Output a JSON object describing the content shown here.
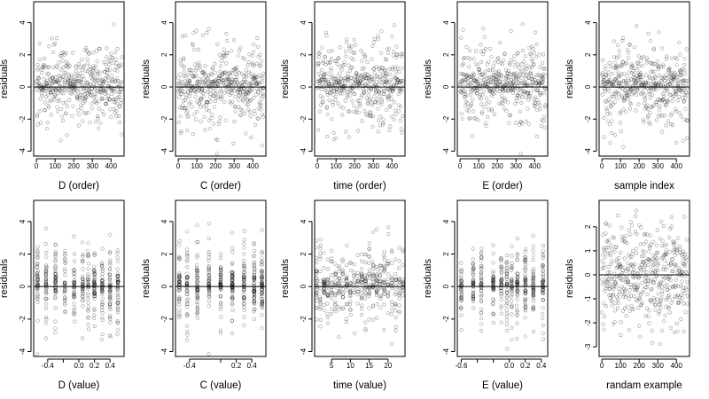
{
  "chart_data": [
    {
      "id": "p1",
      "type": "scatter",
      "xlabel": "D (order)",
      "ylabel": "residuals",
      "xlim": [
        -15,
        470
      ],
      "ylim": [
        -4.3,
        5.3
      ],
      "xticks": [
        0,
        100,
        200,
        300,
        400
      ],
      "yticks": [
        -4,
        -2,
        0,
        2,
        4
      ],
      "ref_y": 0,
      "pattern": "order",
      "seed": 11,
      "x": [],
      "y": []
    },
    {
      "id": "p2",
      "type": "scatter",
      "xlabel": "C (order)",
      "ylabel": "residuals",
      "xlim": [
        -15,
        470
      ],
      "ylim": [
        -4.3,
        5.3
      ],
      "xticks": [
        0,
        100,
        200,
        300,
        400
      ],
      "yticks": [
        -4,
        -2,
        0,
        2,
        4
      ],
      "ref_y": 0,
      "pattern": "order",
      "seed": 23,
      "x": [],
      "y": []
    },
    {
      "id": "p3",
      "type": "scatter",
      "xlabel": "time (order)",
      "ylabel": "residuals",
      "xlim": [
        -15,
        470
      ],
      "ylim": [
        -4.3,
        5.3
      ],
      "xticks": [
        0,
        100,
        200,
        300,
        400
      ],
      "yticks": [
        -4,
        -2,
        0,
        2,
        4
      ],
      "ref_y": 0,
      "pattern": "order",
      "seed": 37,
      "x": [],
      "y": []
    },
    {
      "id": "p4",
      "type": "scatter",
      "xlabel": "E (order)",
      "ylabel": "residuals",
      "xlim": [
        -15,
        470
      ],
      "ylim": [
        -4.3,
        5.3
      ],
      "xticks": [
        0,
        100,
        200,
        300,
        400
      ],
      "yticks": [
        -4,
        -2,
        0,
        2,
        4
      ],
      "ref_y": 0,
      "pattern": "order",
      "seed": 41,
      "x": [],
      "y": []
    },
    {
      "id": "p5",
      "type": "scatter",
      "xlabel": "sample index",
      "ylabel": "residuals",
      "xlim": [
        -15,
        470
      ],
      "ylim": [
        -4.3,
        5.3
      ],
      "xticks": [
        0,
        100,
        200,
        300,
        400
      ],
      "yticks": [
        -4,
        -2,
        0,
        2,
        4
      ],
      "ref_y": 0,
      "pattern": "order",
      "seed": 53,
      "x": [],
      "y": []
    },
    {
      "id": "p6",
      "type": "scatter",
      "xlabel": "D (value)",
      "ylabel": "residuals",
      "xlim": [
        -0.58,
        0.58
      ],
      "ylim": [
        -4.3,
        5.3
      ],
      "xticks": [
        -0.4,
        -0.2,
        0.0,
        0.2,
        0.4
      ],
      "xtick_labels": [
        "-0.4",
        "",
        "0.0",
        "0.2",
        "0.4"
      ],
      "yticks": [
        -4,
        -2,
        0,
        2,
        4
      ],
      "ref_y": 0,
      "pattern": "clusters",
      "levels": [
        -0.53,
        -0.42,
        -0.3,
        -0.18,
        -0.06,
        0.05,
        0.12,
        0.2,
        0.3,
        0.4,
        0.5
      ],
      "seed": 61,
      "x": [],
      "y": []
    },
    {
      "id": "p7",
      "type": "scatter",
      "xlabel": "C (value)",
      "ylabel": "residuals",
      "xlim": [
        -0.58,
        0.58
      ],
      "ylim": [
        -4.3,
        5.3
      ],
      "xticks": [
        -0.4,
        0.0,
        0.2,
        0.4
      ],
      "xtick_labels": [
        "-0.4",
        "",
        "0.2",
        "0.4"
      ],
      "yticks": [
        -4,
        -2,
        0,
        2,
        4
      ],
      "ref_y": 0,
      "pattern": "clusters",
      "levels": [
        -0.53,
        -0.43,
        -0.3,
        -0.15,
        0.0,
        0.15,
        0.3,
        0.43,
        0.53
      ],
      "seed": 71,
      "x": [],
      "y": []
    },
    {
      "id": "p8",
      "type": "scatter",
      "xlabel": "time (value)",
      "ylabel": "residuals",
      "xlim": [
        0.5,
        24.5
      ],
      "ylim": [
        -4.3,
        5.3
      ],
      "xticks": [
        5,
        10,
        15,
        20
      ],
      "xtick_labels": [
        "5",
        "10",
        "15",
        "20"
      ],
      "yticks": [
        -4,
        -2,
        0,
        2,
        4
      ],
      "ref_y": 0,
      "pattern": "clusters",
      "levels": [
        1,
        2,
        3,
        4,
        5,
        6,
        7,
        8,
        9,
        10,
        11,
        12,
        13,
        14,
        15,
        16,
        17,
        18,
        19,
        20,
        21,
        22,
        23,
        24
      ],
      "seed": 83,
      "x": [],
      "y": []
    },
    {
      "id": "p9",
      "type": "scatter",
      "xlabel": "E (value)",
      "ylabel": "residuals",
      "xlim": [
        -0.65,
        0.48
      ],
      "ylim": [
        -4.3,
        5.3
      ],
      "xticks": [
        -0.6,
        -0.4,
        -0.2,
        0.0,
        0.2,
        0.4
      ],
      "xtick_labels": [
        "-0.6",
        "",
        "",
        "0.0",
        "0.2",
        "0.4"
      ],
      "yticks": [
        -4,
        -2,
        0,
        2,
        4
      ],
      "ref_y": 0,
      "pattern": "clusters",
      "levels": [
        -0.6,
        -0.45,
        -0.35,
        -0.2,
        -0.1,
        -0.03,
        0.03,
        0.1,
        0.2,
        0.3,
        0.42
      ],
      "seed": 97,
      "x": [],
      "y": []
    },
    {
      "id": "p10",
      "type": "scatter",
      "xlabel": "randam example",
      "ylabel": "residuals",
      "xlim": [
        -15,
        470
      ],
      "ylim": [
        -3.4,
        3.1
      ],
      "xticks": [
        0,
        100,
        200,
        300,
        400
      ],
      "yticks": [
        -3,
        -2,
        -1,
        0,
        1,
        2
      ],
      "ref_y": 0,
      "pattern": "random",
      "seed": 101,
      "x": [],
      "y": []
    }
  ]
}
